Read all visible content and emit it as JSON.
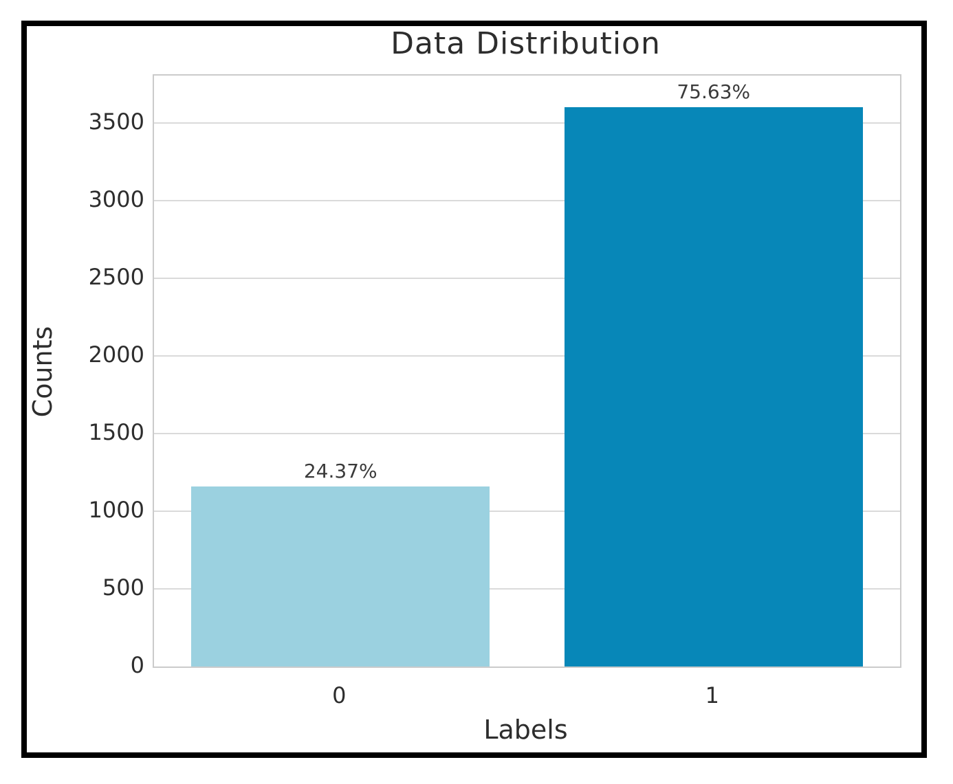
{
  "chart_data": {
    "type": "bar",
    "title": "Data Distribution",
    "xlabel": "Labels",
    "ylabel": "Counts",
    "categories": [
      "0",
      "1"
    ],
    "values": [
      1160,
      3600
    ],
    "bar_labels": [
      "24.37%",
      "75.63%"
    ],
    "bar_colors": [
      "#9bd1e0",
      "#0787b8"
    ],
    "yticks": [
      0,
      500,
      1000,
      1500,
      2000,
      2500,
      3000,
      3500
    ],
    "ylim": [
      0,
      3805
    ],
    "grid": "horizontal",
    "legend": "none",
    "colors": {
      "grid": "#dadada",
      "spine": "#cbcbcb",
      "text": "#2d2d2d",
      "frame": "#000000",
      "background": "#ffffff"
    }
  }
}
